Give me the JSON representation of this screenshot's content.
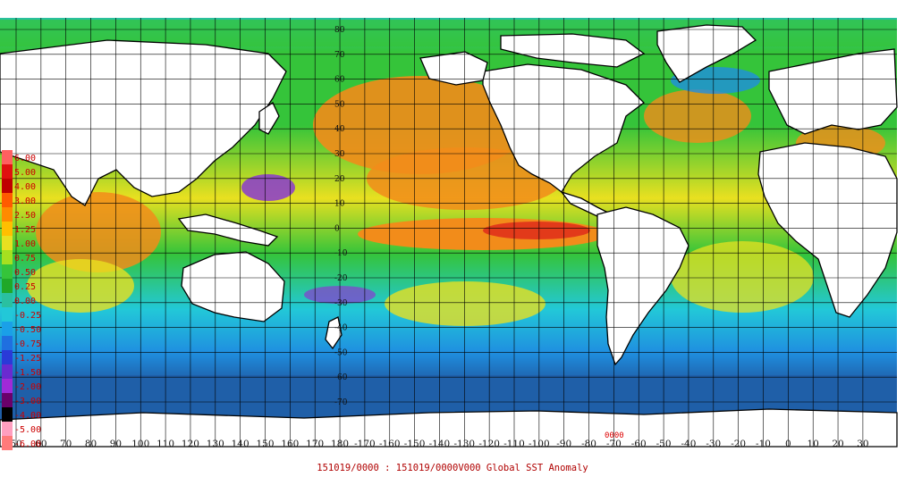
{
  "caption": "151019/0000 : 151019/0000V000 Global SST Anomaly",
  "station_label": "0000",
  "colors": {
    "ocean_deep_blue": "#1f5fa8",
    "ocean_blue": "#1f8fe0",
    "ocean_cyan": "#22c8d8",
    "ocean_green": "#35c43a",
    "ocean_yellow": "#e8e020",
    "ocean_orange": "#f28c1a",
    "ocean_red": "#e23a1a",
    "ocean_purple": "#8a3ad0",
    "land": "#ffffff",
    "coast": "#000000",
    "grid": "#000000",
    "caption_red": "#b00000"
  },
  "legend": {
    "labels": [
      "6.00",
      "5.00",
      "4.00",
      "3.00",
      "2.50",
      "1.25",
      "1.00",
      "0.75",
      "0.50",
      "0.25",
      "0.00",
      "-0.25",
      "-0.50",
      "-0.75",
      "-1.25",
      "-1.50",
      "-2.00",
      "-3.00",
      "-4.00",
      "-5.00",
      "-6.00"
    ],
    "swatches": [
      "#ff6060",
      "#e01010",
      "#c00000",
      "#ff5a00",
      "#ff8a00",
      "#ffbf00",
      "#e8e020",
      "#a6e020",
      "#35c43a",
      "#20a828",
      "#2ac0a0",
      "#22c8d8",
      "#1aa0e8",
      "#1f6fe0",
      "#2a3ad8",
      "#6a2ad0",
      "#a02ad8",
      "#6a006a",
      "#000000",
      "#ff9fbf",
      "#ff7a7a"
    ]
  },
  "lon_labels": [
    "50",
    "60",
    "70",
    "80",
    "90",
    "100",
    "110",
    "120",
    "130",
    "140",
    "150",
    "160",
    "170",
    "180",
    "-170",
    "-160",
    "-150",
    "-140",
    "-130",
    "-120",
    "-110",
    "-100",
    "-90",
    "-80",
    "-70",
    "-60",
    "-50",
    "-40",
    "-30",
    "-20",
    "-10",
    "0",
    "10",
    "20",
    "30"
  ],
  "lat_labels": [
    "80",
    "70",
    "60",
    "50",
    "40",
    "30",
    "20",
    "10",
    "0",
    "-10",
    "-20",
    "-30",
    "-40",
    "-50",
    "-60",
    "-70"
  ]
}
